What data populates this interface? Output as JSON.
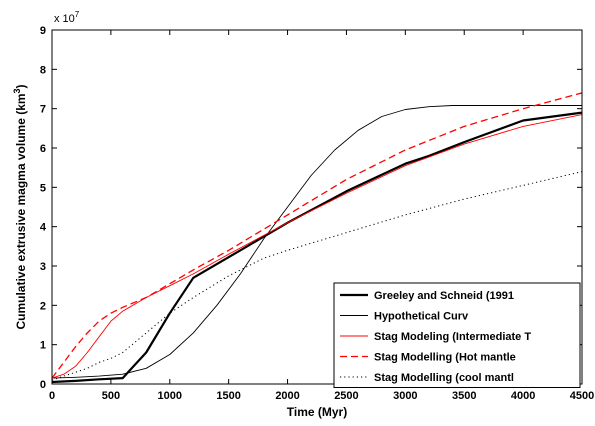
{
  "chart_data": {
    "type": "line",
    "xlabel": "Time (Myr)",
    "ylabel_main": "Cumulative extrusive magma volume (km",
    "ylabel_exp": "3",
    "ylabel_close": ")",
    "y_multiplier_base": "x 10",
    "y_multiplier_exp": "7",
    "xlim": [
      0,
      4500
    ],
    "ylim": [
      0,
      9
    ],
    "xticks": [
      0,
      500,
      1000,
      1500,
      2000,
      2500,
      3000,
      3500,
      4000,
      4500
    ],
    "yticks": [
      0,
      1,
      2,
      3,
      4,
      5,
      6,
      7,
      8,
      9
    ],
    "grid": false,
    "legend_position": "bottom-right",
    "series": [
      {
        "name": "Greeley and Schneid (1991",
        "color": "#000000",
        "style": "solid-thick",
        "x": [
          0,
          200,
          400,
          600,
          800,
          1000,
          1200,
          1600,
          2000,
          2500,
          3000,
          3200,
          3500,
          4000,
          4500
        ],
        "y": [
          0.05,
          0.08,
          0.12,
          0.15,
          0.8,
          1.8,
          2.7,
          3.4,
          4.1,
          4.9,
          5.6,
          5.8,
          6.15,
          6.7,
          6.9
        ]
      },
      {
        "name": "Hypothetical Curv",
        "color": "#000000",
        "style": "solid-thin",
        "x": [
          0,
          200,
          400,
          600,
          800,
          1000,
          1200,
          1400,
          1600,
          1800,
          2000,
          2200,
          2400,
          2600,
          2800,
          3000,
          3200,
          3400,
          3600,
          3800,
          4000,
          4200,
          4500
        ],
        "y": [
          0.15,
          0.17,
          0.2,
          0.25,
          0.4,
          0.75,
          1.3,
          2.0,
          2.8,
          3.7,
          4.5,
          5.3,
          5.95,
          6.45,
          6.8,
          6.98,
          7.05,
          7.08,
          7.08,
          7.08,
          7.08,
          7.08,
          7.08
        ]
      },
      {
        "name": "Stag Modeling (Intermediate T",
        "color": "#ff0000",
        "style": "solid-thin",
        "x": [
          0,
          100,
          200,
          300,
          400,
          500,
          600,
          800,
          1000,
          1200,
          1500,
          2000,
          2500,
          3000,
          3500,
          4000,
          4500
        ],
        "y": [
          0.15,
          0.25,
          0.45,
          0.8,
          1.2,
          1.6,
          1.85,
          2.2,
          2.5,
          2.8,
          3.3,
          4.1,
          4.85,
          5.55,
          6.1,
          6.55,
          6.85
        ]
      },
      {
        "name": "Stag Modelling (Hot mantle",
        "color": "#ff0000",
        "style": "dashed",
        "x": [
          0,
          100,
          200,
          300,
          400,
          500,
          600,
          800,
          1000,
          1200,
          1500,
          2000,
          2500,
          3000,
          3500,
          4000,
          4500
        ],
        "y": [
          0.15,
          0.55,
          0.95,
          1.3,
          1.6,
          1.8,
          1.95,
          2.2,
          2.55,
          2.9,
          3.4,
          4.3,
          5.2,
          5.95,
          6.55,
          7.0,
          7.4
        ]
      },
      {
        "name": "Stag Modelling (cool mantl",
        "color": "#000000",
        "style": "dotted",
        "x": [
          0,
          100,
          200,
          300,
          400,
          500,
          600,
          800,
          1000,
          1200,
          1500,
          1800,
          2000,
          2500,
          3000,
          3500,
          4000,
          4500
        ],
        "y": [
          0.1,
          0.2,
          0.3,
          0.4,
          0.55,
          0.65,
          0.8,
          1.3,
          1.8,
          2.2,
          2.75,
          3.2,
          3.4,
          3.85,
          4.3,
          4.7,
          5.05,
          5.4
        ]
      }
    ]
  }
}
